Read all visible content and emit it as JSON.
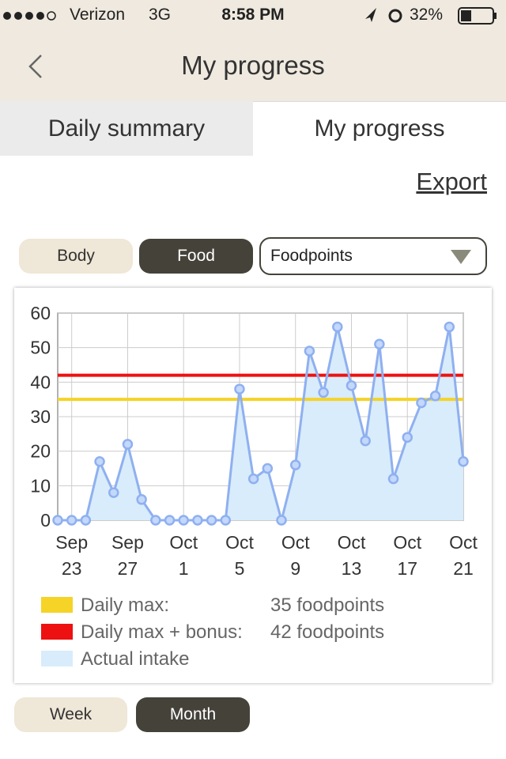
{
  "status_bar": {
    "carrier": "Verizon",
    "network": "3G",
    "time": "8:58 PM",
    "battery": "32%"
  },
  "nav": {
    "title": "My progress"
  },
  "tabs": [
    "Daily summary",
    "My progress"
  ],
  "export": "Export",
  "filters": {
    "buttons": [
      "Body",
      "Food"
    ],
    "dropdown": "Foodpoints"
  },
  "range_buttons": [
    "Week",
    "Month"
  ],
  "chart_data": {
    "type": "area",
    "categories": [
      null,
      "Sep 23",
      null,
      null,
      null,
      "Sep 27",
      null,
      null,
      null,
      "Oct 1",
      null,
      null,
      null,
      "Oct 5",
      null,
      null,
      null,
      "Oct 9",
      null,
      null,
      null,
      "Oct 13",
      null,
      null,
      null,
      "Oct 17",
      null,
      null,
      null,
      "Oct 21"
    ],
    "series": [
      {
        "name": "Actual intake",
        "color": "#8fb0f0",
        "fill": "#d8ecfb",
        "values": [
          0,
          0,
          0,
          17,
          8,
          22,
          6,
          0,
          0,
          0,
          0,
          0,
          0,
          38,
          12,
          15,
          0,
          16,
          49,
          37,
          56,
          39,
          23,
          51,
          12,
          24,
          34,
          36,
          56,
          17
        ]
      }
    ],
    "reference_lines": [
      {
        "name": "Daily max:",
        "value": 35,
        "value_label": "35 foodpoints",
        "color": "#f5d327"
      },
      {
        "name": "Daily max + bonus:",
        "value": 42,
        "value_label": "42 foodpoints",
        "color": "#ee1111"
      }
    ],
    "ylim": [
      0,
      60
    ],
    "yticks": [
      0,
      10,
      20,
      30,
      40,
      50,
      60
    ],
    "grid": true
  }
}
